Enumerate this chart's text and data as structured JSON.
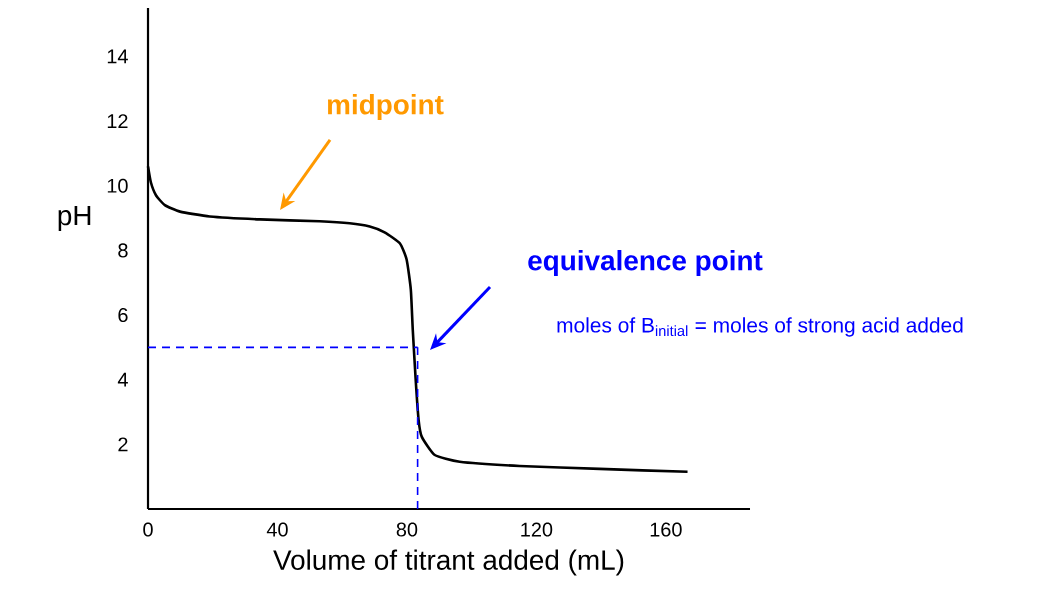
{
  "chart_data": {
    "type": "line",
    "xlabel": "Volume of titrant added (mL)",
    "ylabel": "pH",
    "xlim": [
      0,
      186
    ],
    "ylim": [
      0,
      15.5
    ],
    "xticks": [
      0,
      40,
      80,
      120,
      160
    ],
    "yticks": [
      2,
      4,
      6,
      8,
      10,
      12,
      14
    ],
    "series": [
      {
        "color": "#000000",
        "x": [
          0,
          0.9,
          2.5,
          5.2,
          9.9,
          19.1,
          34.6,
          53,
          62.3,
          68.5,
          73.1,
          77.8,
          79.9,
          81.2,
          81.8,
          82.7,
          83.6,
          84.6,
          88.6,
          96.3,
          114.8,
          139.5,
          166.7
        ],
        "values": [
          10.6,
          10.1,
          9.7,
          9.4,
          9.2,
          9.05,
          8.96,
          8.9,
          8.84,
          8.74,
          8.56,
          8.22,
          7.72,
          6.79,
          5.55,
          4.0,
          2.76,
          2.23,
          1.67,
          1.46,
          1.33,
          1.24,
          1.15
        ]
      }
    ],
    "marker": "none",
    "line_style": "solid",
    "ref_lines": [
      {
        "axis": "y",
        "value": 5.0,
        "color": "#0000ff",
        "line_style": "dashed"
      },
      {
        "axis": "x",
        "value": 83.3,
        "color": "#0000ff",
        "line_style": "dashed"
      }
    ],
    "annotations": [
      "**midpoint**",
      "**equivalence point**",
      "moles of B$_{initial}$ = moles of strong acid added"
    ]
  }
}
